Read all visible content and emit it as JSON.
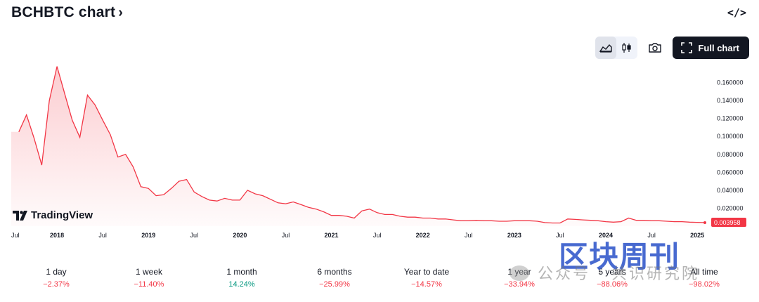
{
  "header": {
    "title": "BCHBTC chart",
    "title_chevron": "›",
    "embed_icon_glyph": "</>"
  },
  "toolbar": {
    "line_chart_icon": "area-chart-icon",
    "candles_icon": "candles-icon",
    "snapshot_icon": "camera-icon",
    "full_chart_label": "Full chart"
  },
  "branding": {
    "logo_text": "TradingView"
  },
  "chart_data": {
    "type": "area",
    "symbol": "BCHBTC",
    "line_color": "#f23645",
    "fill_color": "#f23645",
    "y_axis": {
      "side": "right",
      "ticks": [
        "0.160000",
        "0.140000",
        "0.120000",
        "0.100000",
        "0.080000",
        "0.060000",
        "0.040000",
        "0.020000"
      ],
      "ylim": [
        0,
        0.18
      ]
    },
    "x_axis_labels": [
      {
        "text": "Jul",
        "year": false
      },
      {
        "text": "2018",
        "year": true
      },
      {
        "text": "Jul",
        "year": false
      },
      {
        "text": "2019",
        "year": true
      },
      {
        "text": "Jul",
        "year": false
      },
      {
        "text": "2020",
        "year": true
      },
      {
        "text": "Jul",
        "year": false
      },
      {
        "text": "2021",
        "year": true
      },
      {
        "text": "Jul",
        "year": false
      },
      {
        "text": "2022",
        "year": true
      },
      {
        "text": "Jul",
        "year": false
      },
      {
        "text": "2023",
        "year": true
      },
      {
        "text": "Jul",
        "year": false
      },
      {
        "text": "2024",
        "year": true
      },
      {
        "text": "Jul",
        "year": false
      },
      {
        "text": "2025",
        "year": true
      }
    ],
    "x_range": [
      "2017-07",
      "2025-02"
    ],
    "last_value": "0.003958",
    "series": [
      {
        "x": [
          "2017-08",
          "2017-09",
          "2017-10",
          "2017-11",
          "2017-12",
          "2018-01",
          "2018-02",
          "2018-03",
          "2018-04",
          "2018-05",
          "2018-06",
          "2018-07",
          "2018-08",
          "2018-09",
          "2018-10",
          "2018-11",
          "2018-12",
          "2019-01",
          "2019-02",
          "2019-03",
          "2019-04",
          "2019-05",
          "2019-06",
          "2019-07",
          "2019-08",
          "2019-09",
          "2019-10",
          "2019-11",
          "2019-12",
          "2020-01",
          "2020-02",
          "2020-03",
          "2020-04",
          "2020-05",
          "2020-06",
          "2020-07",
          "2020-08",
          "2020-09",
          "2020-10",
          "2020-11",
          "2020-12",
          "2021-01",
          "2021-02",
          "2021-03",
          "2021-04",
          "2021-05",
          "2021-06",
          "2021-07",
          "2021-08",
          "2021-09",
          "2021-10",
          "2021-11",
          "2021-12",
          "2022-01",
          "2022-02",
          "2022-03",
          "2022-04",
          "2022-05",
          "2022-06",
          "2022-07",
          "2022-08",
          "2022-09",
          "2022-10",
          "2022-11",
          "2022-12",
          "2023-01",
          "2023-02",
          "2023-03",
          "2023-04",
          "2023-05",
          "2023-06",
          "2023-07",
          "2023-08",
          "2023-09",
          "2023-10",
          "2023-11",
          "2023-12",
          "2024-01",
          "2024-02",
          "2024-03",
          "2024-04",
          "2024-05",
          "2024-06",
          "2024-07",
          "2024-08",
          "2024-09",
          "2024-10",
          "2024-11",
          "2024-12",
          "2025-01",
          "2025-02"
        ],
        "y": [
          0.105,
          0.124,
          0.098,
          0.068,
          0.14,
          0.178,
          0.148,
          0.118,
          0.099,
          0.146,
          0.135,
          0.118,
          0.102,
          0.077,
          0.08,
          0.066,
          0.044,
          0.042,
          0.034,
          0.035,
          0.042,
          0.05,
          0.052,
          0.038,
          0.033,
          0.029,
          0.028,
          0.031,
          0.029,
          0.029,
          0.04,
          0.036,
          0.034,
          0.03,
          0.026,
          0.025,
          0.027,
          0.024,
          0.021,
          0.019,
          0.016,
          0.012,
          0.012,
          0.011,
          0.009,
          0.017,
          0.019,
          0.015,
          0.013,
          0.013,
          0.011,
          0.01,
          0.01,
          0.009,
          0.009,
          0.008,
          0.008,
          0.007,
          0.006,
          0.006,
          0.0065,
          0.006,
          0.006,
          0.0055,
          0.0055,
          0.006,
          0.006,
          0.006,
          0.0055,
          0.004,
          0.0035,
          0.0035,
          0.008,
          0.0075,
          0.007,
          0.0065,
          0.006,
          0.005,
          0.0045,
          0.005,
          0.009,
          0.0065,
          0.0065,
          0.006,
          0.006,
          0.0055,
          0.005,
          0.005,
          0.0045,
          0.0042,
          0.003958
        ]
      }
    ]
  },
  "periods": [
    {
      "label": "1 day",
      "value": "−2.37%",
      "direction": "neg"
    },
    {
      "label": "1 week",
      "value": "−11.40%",
      "direction": "neg"
    },
    {
      "label": "1 month",
      "value": "14.24%",
      "direction": "pos"
    },
    {
      "label": "6 months",
      "value": "−25.99%",
      "direction": "neg"
    },
    {
      "label": "Year to date",
      "value": "−14.57%",
      "direction": "neg"
    },
    {
      "label": "1 year",
      "value": "−33.94%",
      "direction": "neg"
    },
    {
      "label": "5 years",
      "value": "−88.06%",
      "direction": "neg"
    },
    {
      "label": "All time",
      "value": "−98.02%",
      "direction": "neg"
    }
  ],
  "watermark": {
    "brand_text": "区块周刊",
    "sub_text": "公众号 · 共识研究院"
  }
}
